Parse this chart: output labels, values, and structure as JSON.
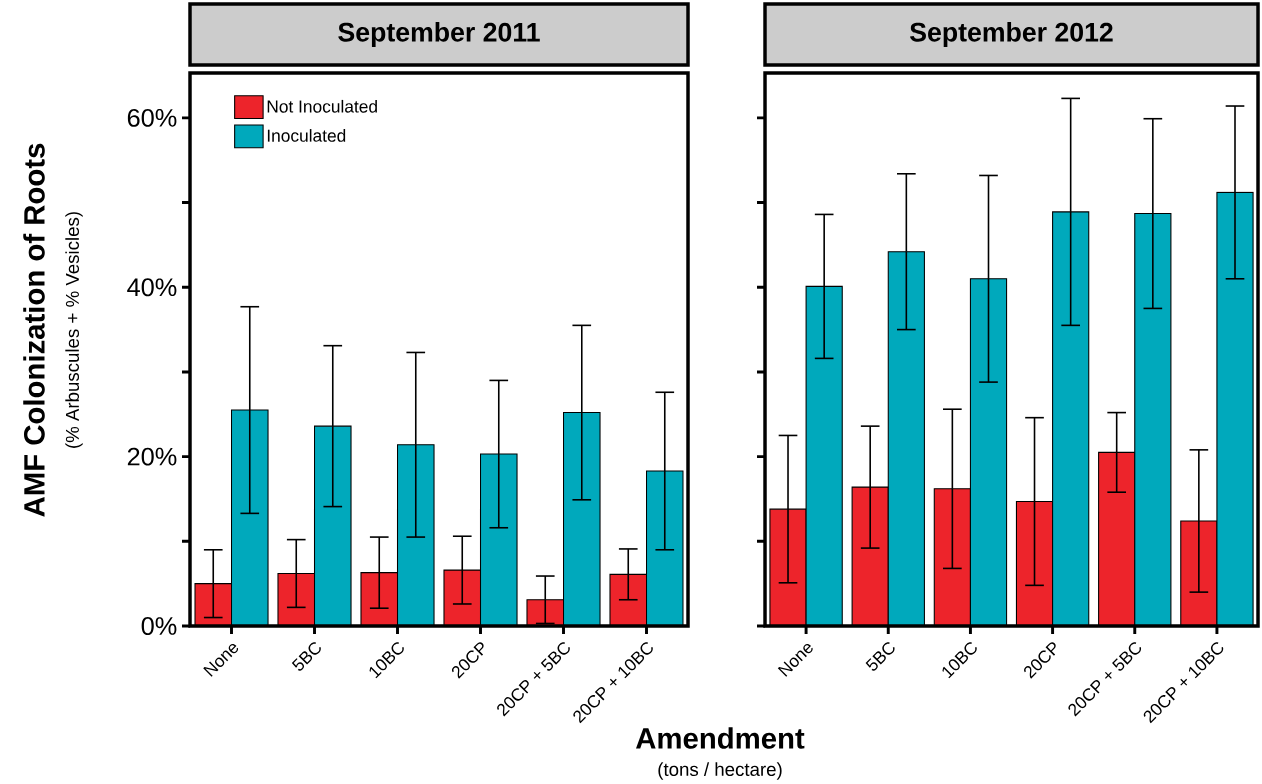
{
  "chart_data": [
    {
      "type": "bar",
      "title": "September 2011",
      "ylabel": "AMF Colonization of Roots",
      "xlabel": "Amendment",
      "annotations": [
        "(% Arbuscules + % Vesicles)",
        "(tons / hectare)"
      ],
      "categories": [
        "None",
        "5BC",
        "10BC",
        "20CP",
        "20CP + 5BC",
        "20CP + 10BC"
      ],
      "series": [
        {
          "name": "Not Inoculated",
          "color": "#ed242b",
          "values": [
            5.0,
            6.2,
            6.3,
            6.6,
            3.1,
            6.1
          ],
          "errors": [
            4.0,
            4.0,
            4.2,
            4.0,
            2.8,
            3.0
          ]
        },
        {
          "name": "Inoculated",
          "color": "#00a9bc",
          "values": [
            25.5,
            23.6,
            21.4,
            20.3,
            25.2,
            18.3
          ],
          "errors": [
            12.2,
            9.5,
            10.9,
            8.7,
            10.3,
            9.3
          ]
        }
      ],
      "ylim": [
        0,
        65.3
      ],
      "yticks": [
        {
          "value": 0,
          "label": "0%"
        },
        {
          "value": 10,
          "label": null
        },
        {
          "value": 20,
          "label": "20%"
        },
        {
          "value": 30,
          "label": null
        },
        {
          "value": 40,
          "label": "40%"
        },
        {
          "value": 50,
          "label": null
        },
        {
          "value": 60,
          "label": "60%"
        }
      ],
      "legend": "top left"
    },
    {
      "type": "bar",
      "title": "September 2012",
      "categories": [
        "None",
        "5BC",
        "10BC",
        "20CP",
        "20CP + 5BC",
        "20CP + 10BC"
      ],
      "series": [
        {
          "color": "#ed242b",
          "values": [
            13.8,
            16.4,
            16.2,
            14.7,
            20.5,
            12.4
          ],
          "errors": [
            8.7,
            7.2,
            9.4,
            9.9,
            4.7,
            8.4
          ]
        },
        {
          "color": "#00a9bc",
          "values": [
            40.1,
            44.2,
            41.0,
            48.9,
            48.7,
            51.2
          ],
          "errors": [
            8.5,
            9.2,
            12.2,
            13.4,
            11.2,
            10.2
          ]
        }
      ],
      "ylim": [
        0,
        65.3
      ],
      "yticks": [
        0,
        10,
        20,
        30,
        40,
        50,
        60
      ],
      "tick_labels": "x"
    }
  ]
}
